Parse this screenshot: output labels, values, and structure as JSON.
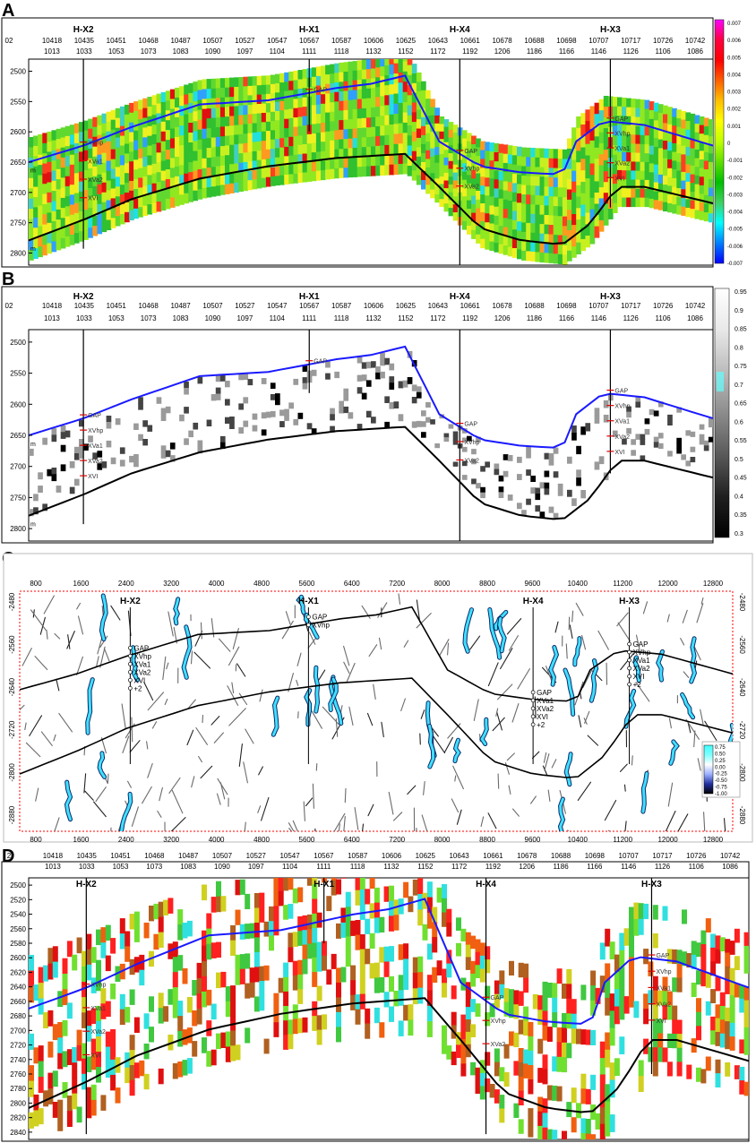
{
  "panels": [
    {
      "id": "A",
      "letter": "A",
      "kind": "seismic-attribute",
      "top_row": [
        "02",
        "10418",
        "10435",
        "10451",
        "10468",
        "10487",
        "10507",
        "10527",
        "10547",
        "10567",
        "10587",
        "10606",
        "10625",
        "10643",
        "10661",
        "10678",
        "10688",
        "10698",
        "10707",
        "10717",
        "10726",
        "10742"
      ],
      "bottom_row": [
        "1013",
        "1033",
        "1053",
        "1073",
        "1083",
        "1090",
        "1097",
        "1104",
        "1111",
        "1118",
        "1132",
        "1152",
        "1172",
        "1192",
        "1206",
        "1186",
        "1166",
        "1146",
        "1126",
        "1106",
        "1086"
      ],
      "depth_ticks": [
        "2500",
        "2550",
        "2600",
        "2650",
        "2700",
        "2750",
        "2800"
      ],
      "depth_range": [
        2480,
        2820
      ],
      "unit": "m",
      "wells": [
        {
          "name": "H-X2",
          "x": 0.08,
          "markers": [
            "XVhp",
            "XVa1",
            "XVa2",
            "XVI"
          ]
        },
        {
          "name": "H-X1",
          "x": 0.41,
          "markers": [
            "GAP"
          ]
        },
        {
          "name": "H-X4",
          "x": 0.63,
          "markers": [
            "GAP",
            "XVhp",
            "XVa2"
          ]
        },
        {
          "name": "H-X3",
          "x": 0.85,
          "markers": [
            "GAP",
            "XVhp",
            "XVa1",
            "XVa2",
            "XVI"
          ]
        }
      ],
      "colorbar": [
        "0.007",
        "0.006",
        "0.005",
        "0.004",
        "0.003",
        "0.002",
        "0.001",
        "0",
        "-0.001",
        "-0.002",
        "-0.003",
        "-0.004",
        "-0.005",
        "-0.006",
        "-0.007"
      ],
      "colorbar_colors": [
        "#ff00ff",
        "#ff0040",
        "#ff0000",
        "#ff6000",
        "#ffc000",
        "#ffff00",
        "#c0ff00",
        "#60e000",
        "#00c000",
        "#40d060",
        "#00ffff",
        "#0080ff",
        "#0000ff"
      ],
      "top_horizon_color": "#1a1aff",
      "base_horizon_color": "#000000"
    },
    {
      "id": "B",
      "letter": "B",
      "kind": "coherence",
      "top_row": [
        "02",
        "10418",
        "10435",
        "10451",
        "10468",
        "10487",
        "10507",
        "10527",
        "10547",
        "10567",
        "10587",
        "10606",
        "10625",
        "10643",
        "10661",
        "10678",
        "10688",
        "10698",
        "10707",
        "10717",
        "10726",
        "10742"
      ],
      "bottom_row": [
        "1013",
        "1033",
        "1053",
        "1073",
        "1083",
        "1090",
        "1097",
        "1104",
        "1111",
        "1118",
        "1132",
        "1152",
        "1172",
        "1192",
        "1206",
        "1186",
        "1166",
        "1146",
        "1126",
        "1106",
        "1086"
      ],
      "depth_ticks": [
        "2500",
        "2550",
        "2600",
        "2650",
        "2700",
        "2750",
        "2800"
      ],
      "depth_range": [
        2480,
        2820
      ],
      "unit": "m",
      "wells": [
        {
          "name": "H-X2",
          "x": 0.08,
          "markers": [
            "GAP",
            "XVhp",
            "XVa1",
            "XVa2",
            "XVI"
          ]
        },
        {
          "name": "H-X1",
          "x": 0.41,
          "markers": [
            "GAP"
          ]
        },
        {
          "name": "H-X4",
          "x": 0.63,
          "markers": [
            "GAP",
            "XVhp",
            "XVa2"
          ]
        },
        {
          "name": "H-X3",
          "x": 0.85,
          "markers": [
            "GAP",
            "XVhp",
            "XVa1",
            "XVa2",
            "XVI"
          ]
        }
      ],
      "colorbar": [
        "0.95",
        "0.9",
        "0.85",
        "0.8",
        "0.75",
        "0.7",
        "0.65",
        "0.6",
        "0.55",
        "0.5",
        "0.45",
        "0.4",
        "0.35",
        "0.3"
      ],
      "top_horizon_color": "#1a1aff",
      "base_horizon_color": "#000000"
    },
    {
      "id": "C",
      "letter": "C",
      "kind": "fracture-likelihood",
      "x_ticks": [
        "800",
        "1600",
        "2400",
        "3200",
        "4000",
        "4800",
        "5600",
        "6400",
        "7200",
        "8000",
        "8800",
        "9600",
        "10400",
        "11200",
        "12000",
        "12800"
      ],
      "depth_ticks": [
        "-2480",
        "-2560",
        "-2640",
        "-2720",
        "-2800",
        "-2880"
      ],
      "depth_range": [
        -2460,
        -2930
      ],
      "wells": [
        {
          "name": "H-X2",
          "x": 0.155,
          "markers": [
            "GAP",
            "XVhp",
            "XVa1",
            "XVa2",
            "XVI",
            "+2"
          ]
        },
        {
          "name": "H-X1",
          "x": 0.405,
          "markers": [
            "GAP",
            "XVhp"
          ]
        },
        {
          "name": "H-X4",
          "x": 0.72,
          "markers": [
            "GAP",
            "XVa1",
            "XVa2",
            "XVI",
            "+2"
          ]
        },
        {
          "name": "H-X3",
          "x": 0.855,
          "markers": [
            "GAP",
            "XVhp",
            "XVa1",
            "XVa2",
            "XVI",
            "+2"
          ]
        }
      ],
      "colorbar": [
        "0.75",
        "0.50",
        "0.25",
        "0.00",
        "-0.25",
        "-0.50",
        "-0.75",
        "-1.00"
      ],
      "frame_color": "#ff0000"
    },
    {
      "id": "D",
      "letter": "D",
      "kind": "ant-tracking",
      "top_row": [
        "2",
        "10418",
        "10435",
        "10451",
        "10468",
        "10487",
        "10507",
        "10527",
        "10547",
        "10567",
        "10587",
        "10606",
        "10625",
        "10643",
        "10661",
        "10678",
        "10688",
        "10698",
        "10707",
        "10717",
        "10726",
        "10742"
      ],
      "bottom_row": [
        "1013",
        "1033",
        "1053",
        "1073",
        "1083",
        "1090",
        "1097",
        "1104",
        "1111",
        "1118",
        "1132",
        "1152",
        "1172",
        "1192",
        "1206",
        "1186",
        "1166",
        "1146",
        "1126",
        "1106",
        "1086"
      ],
      "depth_ticks": [
        "2500",
        "2520",
        "2540",
        "2560",
        "2580",
        "2600",
        "2620",
        "2640",
        "2660",
        "2680",
        "2700",
        "2720",
        "2740",
        "2760",
        "2780",
        "2800",
        "2820",
        "2840"
      ],
      "depth_range": [
        2490,
        2850
      ],
      "wells": [
        {
          "name": "H-X2",
          "x": 0.08,
          "markers": [
            "XVhp",
            "XVa1",
            "XVa2",
            "XVI"
          ]
        },
        {
          "name": "H-X1",
          "x": 0.41,
          "markers": []
        },
        {
          "name": "H-X4",
          "x": 0.635,
          "markers": [
            "GAP",
            "XVhp",
            "XVa2"
          ]
        },
        {
          "name": "H-X3",
          "x": 0.865,
          "markers": [
            "GAP",
            "XVhp",
            "XVa1",
            "XVa2",
            "XVI"
          ]
        }
      ],
      "top_horizon_color": "#1a1aff",
      "base_horizon_color": "#000000"
    }
  ]
}
